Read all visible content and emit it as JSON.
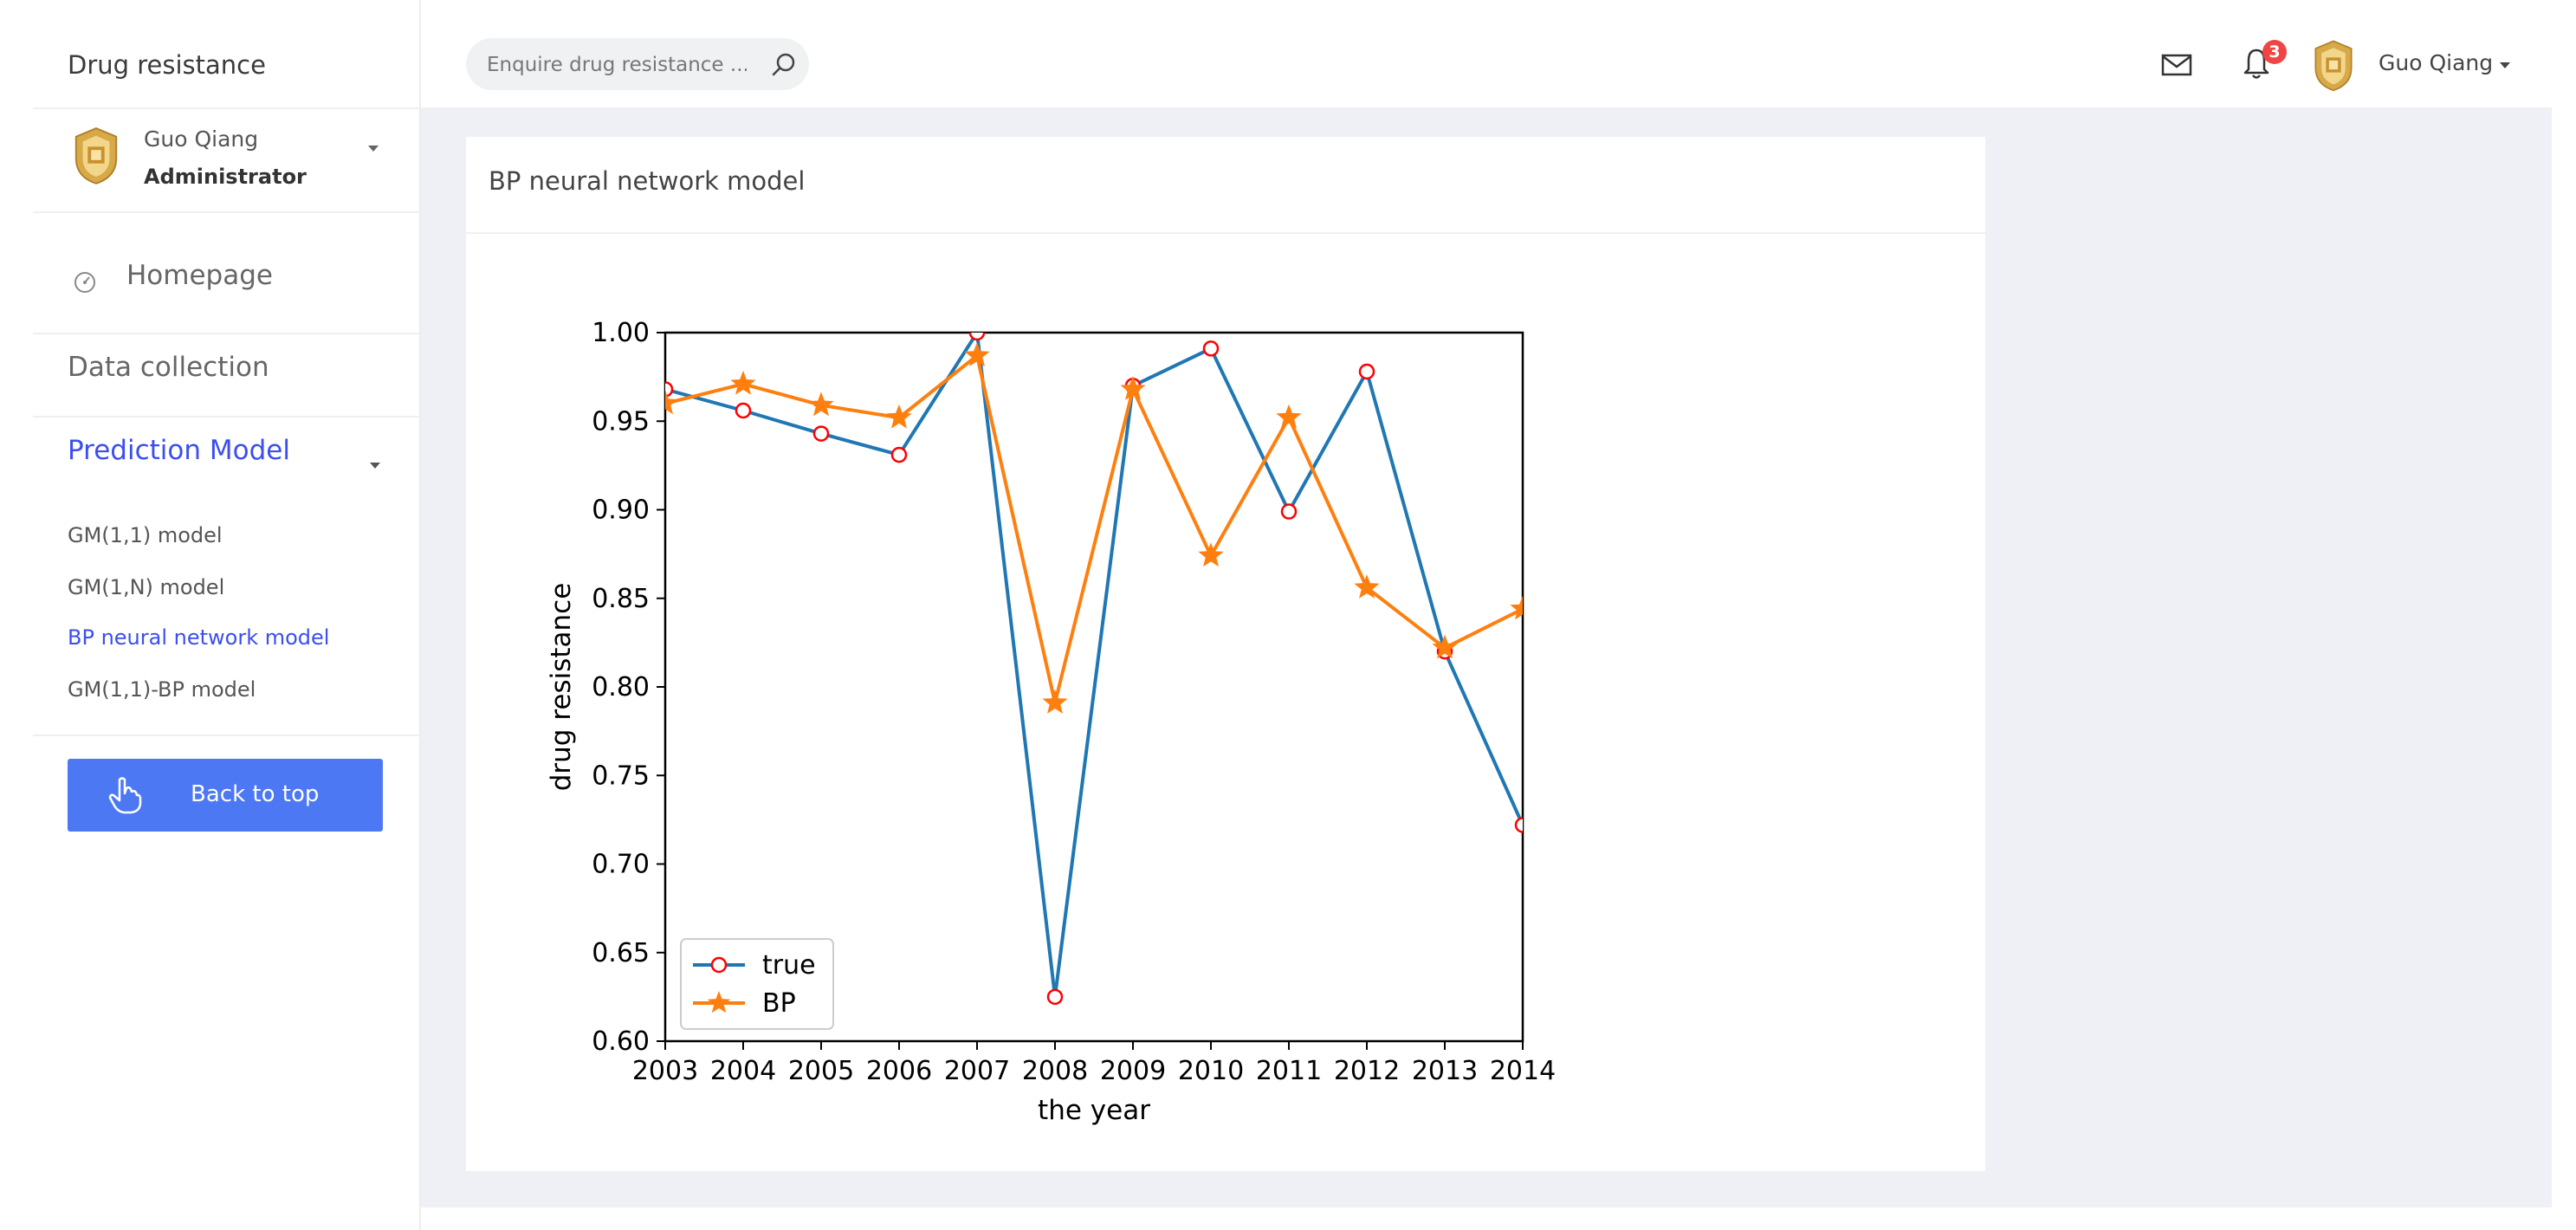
{
  "sidebar": {
    "brand": "Drug resistance",
    "user": {
      "name": "Guo Qiang",
      "role": "Administrator"
    },
    "nav": {
      "home": "Homepage",
      "data_collection": "Data collection",
      "prediction_model": "Prediction Model",
      "sub_items": [
        "GM(1,1) model",
        "GM(1,N) model",
        "BP neural network model",
        "GM(1,1)-BP model"
      ],
      "active_sub_index": 2
    },
    "back_to_top": "Back to top"
  },
  "topbar": {
    "search_placeholder": "Enquire drug resistance ...",
    "notification_count": "3",
    "user_name": "Guo Qiang",
    "icons": [
      "search-icon",
      "mail-icon",
      "bell-icon"
    ]
  },
  "card": {
    "title": "BP neural network model"
  },
  "colors": {
    "accent": "#3b4ef0",
    "button": "#4c78f4",
    "badge": "#f04545",
    "series_true": "#1f77b4",
    "series_bp": "#ff7f0e",
    "marker_true_edge": "#ff0000"
  },
  "chart_data": {
    "type": "line",
    "title": "",
    "xlabel": "the year",
    "ylabel": "drug resistance",
    "x": [
      2003,
      2004,
      2005,
      2006,
      2007,
      2008,
      2009,
      2010,
      2011,
      2012,
      2013,
      2014
    ],
    "xlim": [
      2003,
      2014
    ],
    "ylim": [
      0.6,
      1.0
    ],
    "yticks": [
      "0.60",
      "0.65",
      "0.70",
      "0.75",
      "0.80",
      "0.85",
      "0.90",
      "0.95",
      "1.00"
    ],
    "grid": false,
    "legend_position": "lower-left",
    "series": [
      {
        "name": "true",
        "marker": "circle-open",
        "values": [
          0.968,
          0.956,
          0.943,
          0.931,
          1.0,
          0.625,
          0.97,
          0.991,
          0.899,
          0.978,
          0.82,
          0.722
        ]
      },
      {
        "name": "BP",
        "marker": "star",
        "values": [
          0.96,
          0.971,
          0.959,
          0.952,
          0.987,
          0.791,
          0.968,
          0.874,
          0.952,
          0.856,
          0.822,
          0.844
        ]
      }
    ]
  }
}
